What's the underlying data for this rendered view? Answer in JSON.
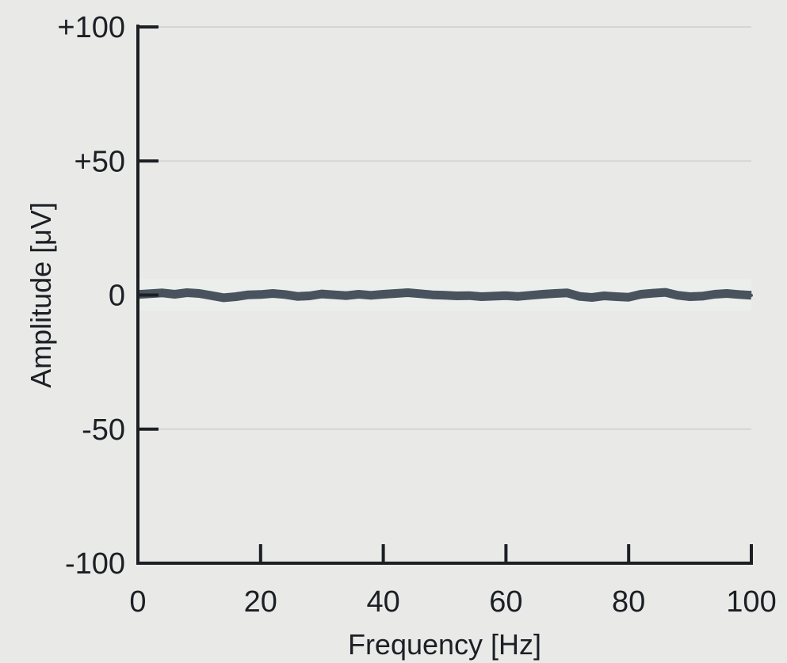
{
  "chart_data": {
    "type": "line",
    "title": "",
    "xlabel": "Frequency [Hz]",
    "ylabel": "Amplitude [μV]",
    "xlim": [
      0,
      100
    ],
    "ylim": [
      -100,
      100
    ],
    "xticks": [
      0,
      20,
      40,
      60,
      80,
      100
    ],
    "xtick_labels": [
      "0",
      "20",
      "40",
      "60",
      "80",
      "100"
    ],
    "yticks": [
      100,
      50,
      0,
      -50,
      -100
    ],
    "ytick_labels": [
      "+100",
      "+50",
      "0",
      "-50",
      "-100"
    ],
    "grid": "horizontal",
    "series": [
      {
        "color": "#48535e",
        "x": [
          0,
          2,
          4,
          6,
          8,
          10,
          12,
          14,
          16,
          18,
          20,
          22,
          24,
          26,
          28,
          30,
          32,
          34,
          36,
          38,
          40,
          42,
          44,
          46,
          48,
          50,
          52,
          54,
          56,
          58,
          60,
          62,
          64,
          66,
          68,
          70,
          72,
          74,
          76,
          78,
          80,
          82,
          84,
          86,
          88,
          90,
          92,
          94,
          96,
          98,
          100
        ],
        "y": [
          0.2,
          0.5,
          0.8,
          0.3,
          0.9,
          0.6,
          -0.2,
          -1.0,
          -0.6,
          0.1,
          0.2,
          0.6,
          0.2,
          -0.5,
          -0.3,
          0.4,
          0.1,
          -0.2,
          0.3,
          -0.1,
          0.3,
          0.6,
          0.9,
          0.5,
          0.1,
          -0.1,
          -0.3,
          -0.2,
          -0.6,
          -0.4,
          -0.2,
          -0.5,
          -0.1,
          0.3,
          0.6,
          0.8,
          -0.5,
          -0.9,
          -0.3,
          -0.6,
          -0.8,
          0.3,
          0.7,
          1.0,
          -0.1,
          -0.6,
          -0.4,
          0.3,
          0.6,
          0.2,
          -0.1
        ]
      }
    ]
  }
}
